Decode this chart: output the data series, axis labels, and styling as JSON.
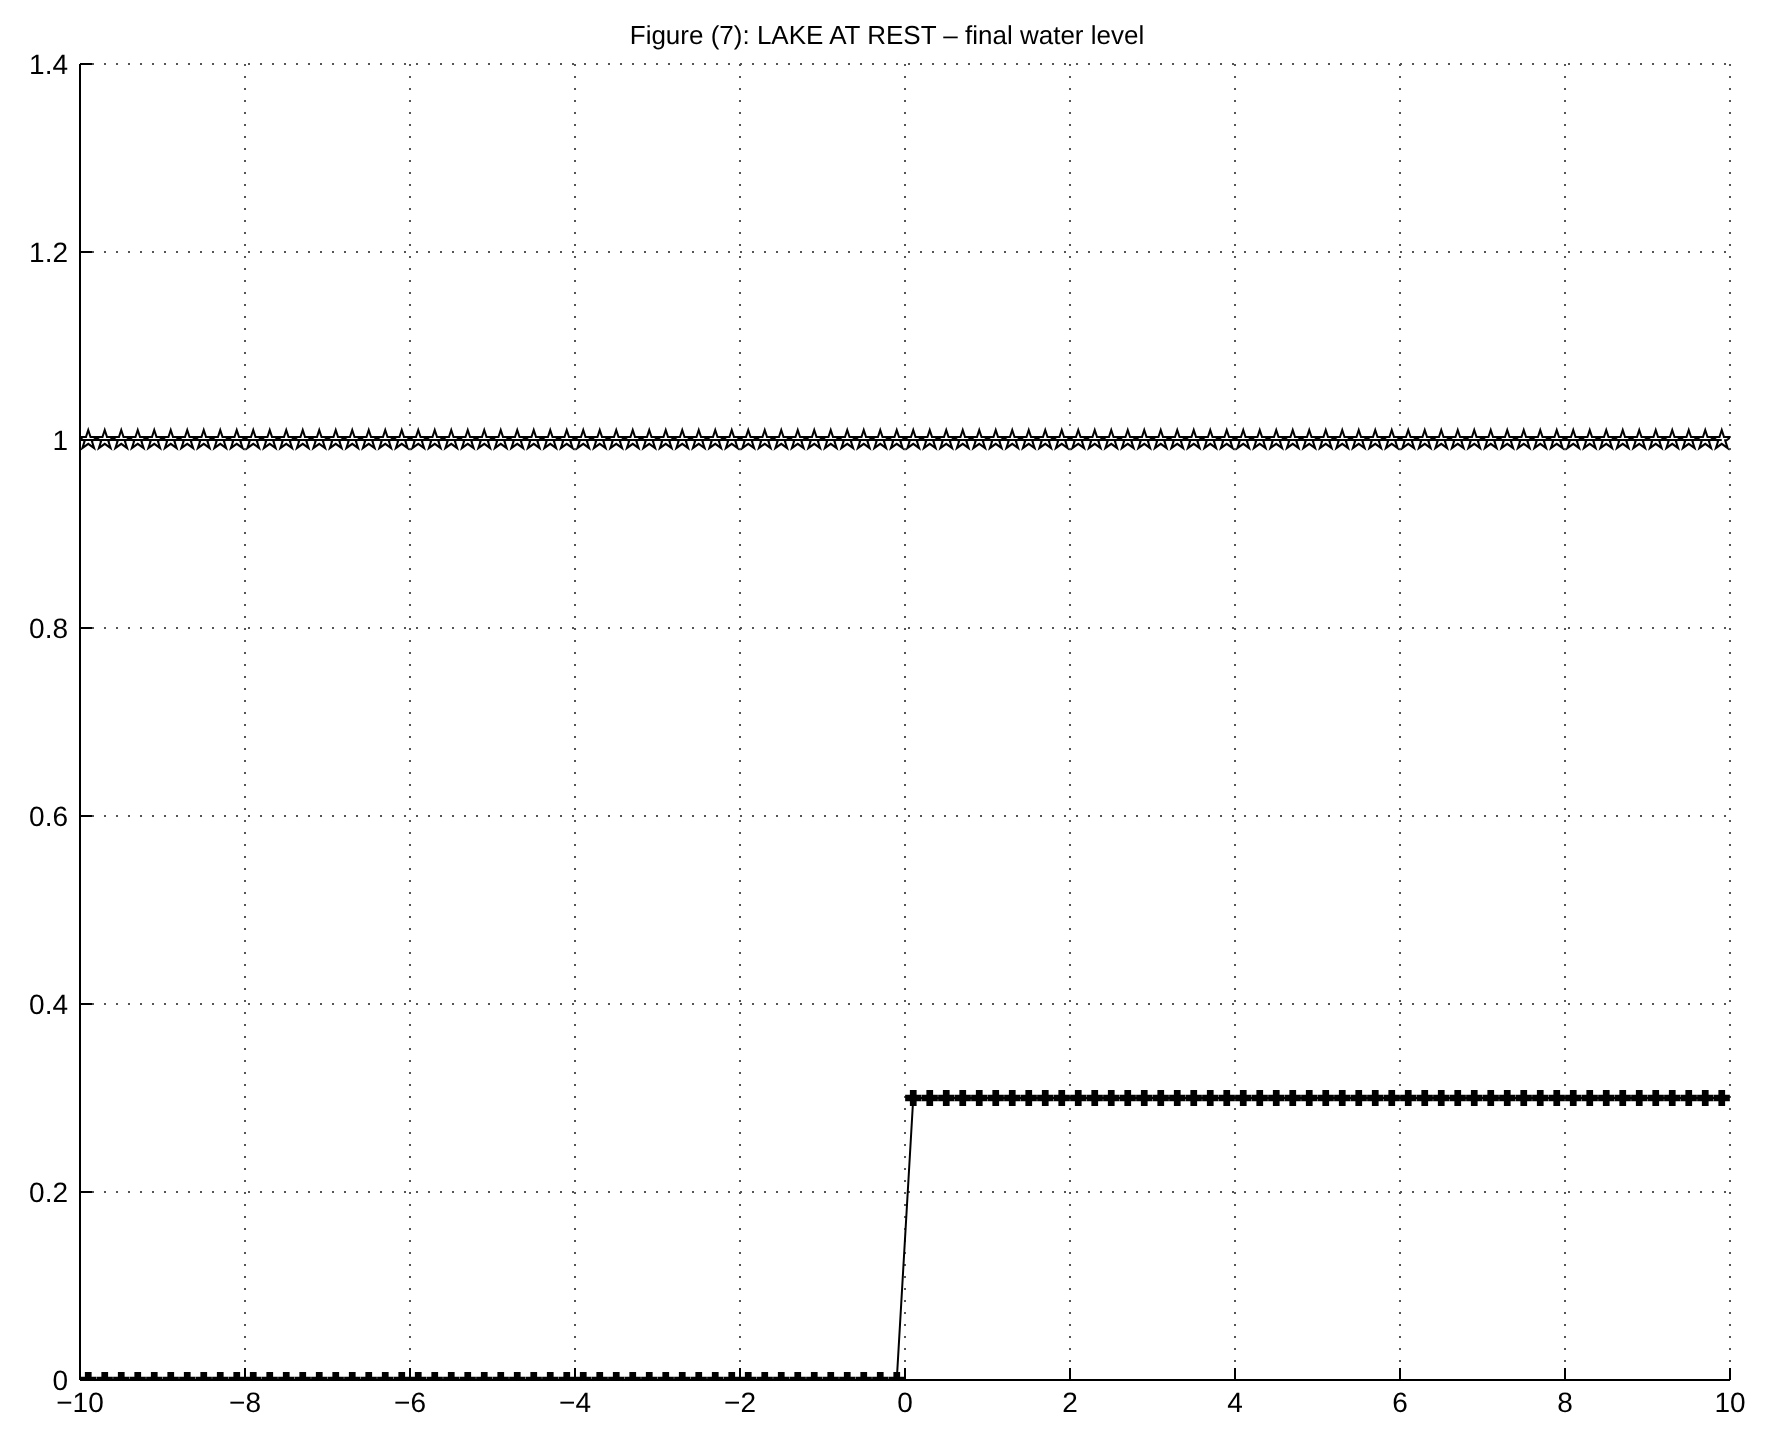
{
  "chart_data": {
    "type": "line",
    "title": "Figure (7): LAKE AT REST – final water level",
    "x": [
      -9.9,
      -9.7,
      -9.5,
      -9.3,
      -9.1,
      -8.9,
      -8.7,
      -8.5,
      -8.3,
      -8.1,
      -7.9,
      -7.7,
      -7.5,
      -7.3,
      -7.1,
      -6.9,
      -6.7,
      -6.5,
      -6.3,
      -6.1,
      -5.9,
      -5.7,
      -5.5,
      -5.3,
      -5.1,
      -4.9,
      -4.7,
      -4.5,
      -4.3,
      -4.1,
      -3.9,
      -3.7,
      -3.5,
      -3.3,
      -3.1,
      -2.9,
      -2.7,
      -2.5,
      -2.3,
      -2.1,
      -1.9,
      -1.7,
      -1.5,
      -1.3,
      -1.1,
      -0.9,
      -0.7,
      -0.5,
      -0.3,
      -0.1,
      0.1,
      0.3,
      0.5,
      0.7,
      0.9,
      1.1,
      1.3,
      1.5,
      1.7,
      1.9,
      2.1,
      2.3,
      2.5,
      2.7,
      2.9,
      3.1,
      3.3,
      3.5,
      3.7,
      3.9,
      4.1,
      4.3,
      4.5,
      4.7,
      4.9,
      5.1,
      5.3,
      5.5,
      5.7,
      5.9,
      6.1,
      6.3,
      6.5,
      6.7,
      6.9,
      7.1,
      7.3,
      7.5,
      7.7,
      7.9,
      8.1,
      8.3,
      8.5,
      8.7,
      8.9,
      9.1,
      9.3,
      9.5,
      9.7,
      9.9
    ],
    "series": [
      {
        "color": "#000000",
        "marker": "star",
        "values": [
          1,
          1,
          1,
          1,
          1,
          1,
          1,
          1,
          1,
          1,
          1,
          1,
          1,
          1,
          1,
          1,
          1,
          1,
          1,
          1,
          1,
          1,
          1,
          1,
          1,
          1,
          1,
          1,
          1,
          1,
          1,
          1,
          1,
          1,
          1,
          1,
          1,
          1,
          1,
          1,
          1,
          1,
          1,
          1,
          1,
          1,
          1,
          1,
          1,
          1,
          1,
          1,
          1,
          1,
          1,
          1,
          1,
          1,
          1,
          1,
          1,
          1,
          1,
          1,
          1,
          1,
          1,
          1,
          1,
          1,
          1,
          1,
          1,
          1,
          1,
          1,
          1,
          1,
          1,
          1,
          1,
          1,
          1,
          1,
          1,
          1,
          1,
          1,
          1,
          1,
          1,
          1,
          1,
          1,
          1,
          1,
          1,
          1,
          1,
          1
        ]
      },
      {
        "color": "#000000",
        "marker": "cross",
        "values": [
          0,
          0,
          0,
          0,
          0,
          0,
          0,
          0,
          0,
          0,
          0,
          0,
          0,
          0,
          0,
          0,
          0,
          0,
          0,
          0,
          0,
          0,
          0,
          0,
          0,
          0,
          0,
          0,
          0,
          0,
          0,
          0,
          0,
          0,
          0,
          0,
          0,
          0,
          0,
          0,
          0,
          0,
          0,
          0,
          0,
          0,
          0,
          0,
          0,
          0,
          0.3,
          0.3,
          0.3,
          0.3,
          0.3,
          0.3,
          0.3,
          0.3,
          0.3,
          0.3,
          0.3,
          0.3,
          0.3,
          0.3,
          0.3,
          0.3,
          0.3,
          0.3,
          0.3,
          0.3,
          0.3,
          0.3,
          0.3,
          0.3,
          0.3,
          0.3,
          0.3,
          0.3,
          0.3,
          0.3,
          0.3,
          0.3,
          0.3,
          0.3,
          0.3,
          0.3,
          0.3,
          0.3,
          0.3,
          0.3,
          0.3,
          0.3,
          0.3,
          0.3,
          0.3,
          0.3,
          0.3,
          0.3,
          0.3,
          0.3
        ]
      }
    ],
    "xlim": [
      -10,
      10
    ],
    "xticks": [
      -10,
      -8,
      -6,
      -4,
      -2,
      0,
      2,
      4,
      6,
      8,
      10
    ],
    "ylim": [
      0,
      1.4
    ],
    "yticks": [
      0,
      0.2,
      0.4,
      0.6,
      0.8,
      1,
      1.2,
      1.4
    ],
    "grid": true,
    "line_style": "solid"
  }
}
